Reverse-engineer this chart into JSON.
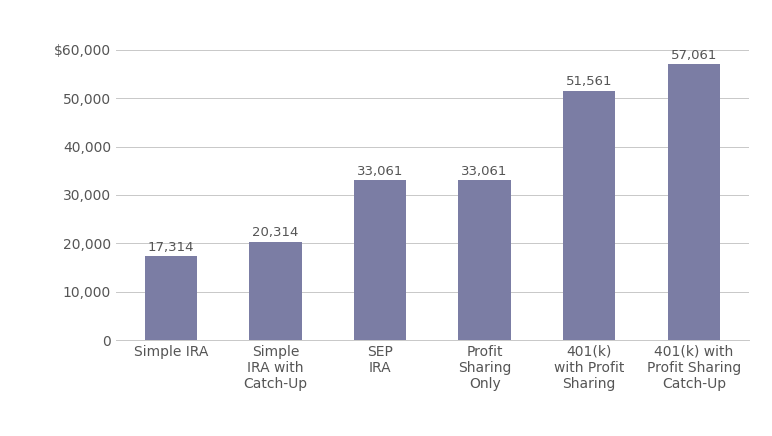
{
  "categories": [
    "Simple IRA",
    "Simple\nIRA with\nCatch-Up",
    "SEP\nIRA",
    "Profit\nSharing\nOnly",
    "401(k)\nwith Profit\nSharing",
    "401(k) with\nProfit Sharing\nCatch-Up"
  ],
  "values": [
    17314,
    20314,
    33061,
    33061,
    51561,
    57061
  ],
  "bar_color": "#7b7da4",
  "label_color": "#555555",
  "background_color": "#ffffff",
  "grid_color": "#c8c8c8",
  "ytick_labels": [
    "0",
    "10,000",
    "20,000",
    "30,000",
    "40,000",
    "50,000",
    "$60,000"
  ],
  "ytick_values": [
    0,
    10000,
    20000,
    30000,
    40000,
    50000,
    60000
  ],
  "ylim": [
    0,
    64000
  ],
  "value_labels": [
    "17,314",
    "20,314",
    "33,061",
    "33,061",
    "51,561",
    "57,061"
  ],
  "bar_width": 0.5,
  "font_size_ticks": 10,
  "font_size_value_labels": 9.5
}
